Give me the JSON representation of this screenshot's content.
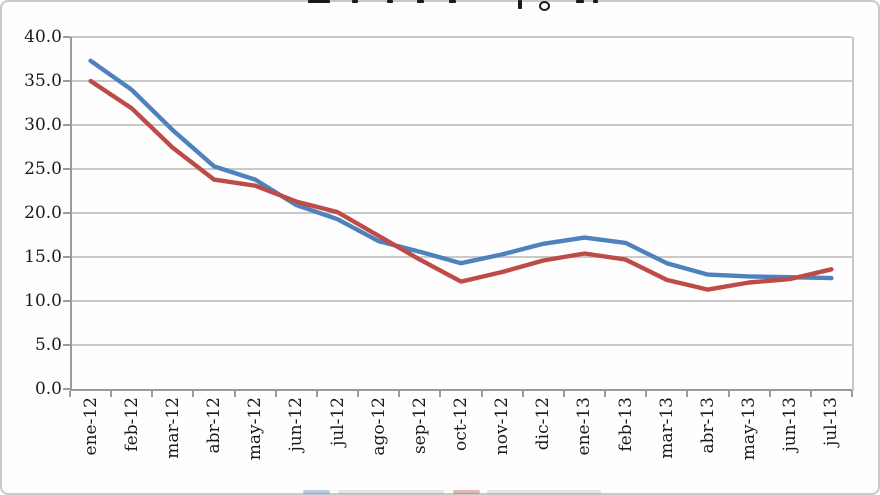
{
  "chart_data": {
    "type": "line",
    "title": "",
    "title_cropped": true,
    "legend_position": "bottom",
    "legend_cropped": true,
    "grid": true,
    "ylim": [
      0,
      40
    ],
    "ytick_step": 5,
    "ytick_labels": [
      "0.0",
      "5.0",
      "10.0",
      "15.0",
      "20.0",
      "25.0",
      "30.0",
      "35.0",
      "40.0"
    ],
    "categories": [
      "ene-12",
      "feb-12",
      "mar-12",
      "abr-12",
      "may-12",
      "jun-12",
      "jul-12",
      "ago-12",
      "sep-12",
      "oct-12",
      "nov-12",
      "dic-12",
      "ene-13",
      "feb-13",
      "mar-13",
      "abr-13",
      "may-13",
      "jun-13",
      "jul-13"
    ],
    "series": [
      {
        "id": "serie-azul",
        "color": "#4F81BD",
        "values": [
          37.3,
          34.0,
          29.4,
          25.3,
          23.8,
          20.9,
          19.3,
          16.8,
          15.6,
          14.3,
          15.3,
          16.5,
          17.2,
          16.6,
          14.3,
          13.0,
          12.8,
          12.7,
          12.6
        ]
      },
      {
        "id": "serie-roja",
        "color": "#BE4B48",
        "values": [
          35.0,
          31.9,
          27.4,
          23.8,
          23.1,
          21.3,
          20.1,
          17.4,
          14.7,
          12.2,
          13.3,
          14.6,
          15.4,
          14.7,
          12.4,
          11.3,
          12.1,
          12.5,
          13.6
        ]
      }
    ],
    "colors": {
      "gridline": "#c9c9c9",
      "axis": "#9a9a9a",
      "label_text": "#1a1a1a",
      "series1": "#4F81BD",
      "series2": "#BE4B48"
    }
  }
}
